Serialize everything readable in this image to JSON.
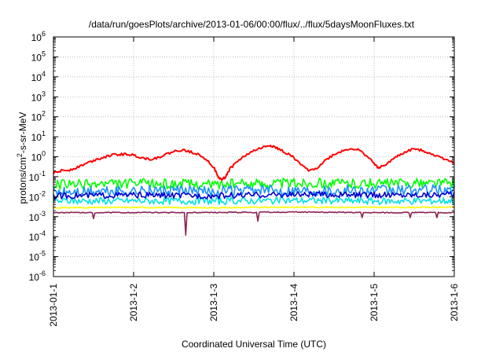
{
  "chart_data": {
    "type": "line",
    "title": "/data/run/goesPlots/archive/2013-01-06/00:00/flux/../flux/5daysMoonFluxes.txt",
    "xlabel": "Coordinated Universal Time (UTC)",
    "ylabel": "protons/cm²-s-sr-MeV",
    "ylabel_parts": {
      "before": "protons/cm",
      "sup": "2",
      "after": "-s-sr-MeV"
    },
    "yscale": "log",
    "ylim": [
      1e-06,
      1000000.0
    ],
    "xlim": [
      "2013-01-01",
      "2013-01-06"
    ],
    "grid": true,
    "x_ticks": [
      {
        "label": "2013-01-1",
        "day": 0
      },
      {
        "label": "2013-1-2",
        "day": 1
      },
      {
        "label": "2013-1-3",
        "day": 2
      },
      {
        "label": "2013-1-4",
        "day": 3
      },
      {
        "label": "2013-1-5",
        "day": 4
      },
      {
        "label": "2013-1-6",
        "day": 5
      }
    ],
    "y_ticks": [
      {
        "base": "10",
        "exp": "-6",
        "value": 1e-06
      },
      {
        "base": "10",
        "exp": "-5",
        "value": 1e-05
      },
      {
        "base": "10",
        "exp": "-4",
        "value": 0.0001
      },
      {
        "base": "10",
        "exp": "-3",
        "value": 0.001
      },
      {
        "base": "10",
        "exp": "-2",
        "value": 0.01
      },
      {
        "base": "10",
        "exp": "-1",
        "value": 0.1
      },
      {
        "base": "10",
        "exp": "0",
        "value": 1
      },
      {
        "base": "10",
        "exp": "1",
        "value": 10
      },
      {
        "base": "10",
        "exp": "2",
        "value": 100
      },
      {
        "base": "10",
        "exp": "3",
        "value": 1000
      },
      {
        "base": "10",
        "exp": "4",
        "value": 10000
      },
      {
        "base": "10",
        "exp": "5",
        "value": 100000
      },
      {
        "base": "10",
        "exp": "6",
        "value": 1000000
      }
    ],
    "series": [
      {
        "color": "#ffff00",
        "width": 1.6,
        "noise": 0.06,
        "anchors": [
          [
            0,
            0.0028
          ],
          [
            1,
            0.0029
          ],
          [
            2,
            0.0028
          ],
          [
            3,
            0.003
          ],
          [
            4,
            0.0029
          ],
          [
            5,
            0.003
          ]
        ]
      },
      {
        "color": "#00e0e0",
        "width": 1.6,
        "noise": 0.35,
        "anchors": [
          [
            0,
            0.006
          ],
          [
            1,
            0.0062
          ],
          [
            2,
            0.006
          ],
          [
            3,
            0.0065
          ],
          [
            4,
            0.006
          ],
          [
            5,
            0.0063
          ]
        ]
      },
      {
        "color": "#00ff00",
        "width": 1.6,
        "noise": 0.5,
        "anchors": [
          [
            0,
            0.04
          ],
          [
            1,
            0.045
          ],
          [
            2,
            0.042
          ],
          [
            3,
            0.05
          ],
          [
            4,
            0.045
          ],
          [
            5,
            0.05
          ]
        ]
      },
      {
        "color": "#1e90ff",
        "width": 1.6,
        "noise": 0.55,
        "anchors": [
          [
            0,
            0.016
          ],
          [
            1,
            0.02
          ],
          [
            2,
            0.018
          ],
          [
            3,
            0.022
          ],
          [
            4,
            0.02
          ],
          [
            5,
            0.022
          ]
        ]
      },
      {
        "color": "#0000cd",
        "width": 1.6,
        "noise": 0.3,
        "anchors": [
          [
            0,
            0.011
          ],
          [
            1,
            0.012
          ],
          [
            2,
            0.011
          ],
          [
            3,
            0.013
          ],
          [
            4,
            0.012
          ],
          [
            5,
            0.013
          ]
        ]
      },
      {
        "color": "#8b2252",
        "width": 1.6,
        "noise": 0.05,
        "anchors": [
          [
            0,
            0.0016
          ],
          [
            1,
            0.0016
          ],
          [
            2,
            0.0016
          ],
          [
            3,
            0.0017
          ],
          [
            4,
            0.0016
          ],
          [
            5,
            0.0016
          ]
        ],
        "spikes": [
          [
            0.5,
            0.0008
          ],
          [
            1.65,
            0.00012
          ],
          [
            2.55,
            0.0006
          ],
          [
            3.85,
            0.0009
          ],
          [
            4.45,
            0.0009
          ],
          [
            4.78,
            0.0009
          ]
        ]
      },
      {
        "color": "#ff0000",
        "width": 2,
        "points": [
          [
            0,
            0.15
          ],
          [
            0.1,
            0.2
          ],
          [
            0.2,
            0.22
          ],
          [
            0.3,
            0.3
          ],
          [
            0.4,
            0.45
          ],
          [
            0.5,
            0.65
          ],
          [
            0.6,
            0.9
          ],
          [
            0.7,
            1.15
          ],
          [
            0.8,
            1.3
          ],
          [
            0.9,
            1.35
          ],
          [
            1.0,
            1.2
          ],
          [
            1.1,
            0.9
          ],
          [
            1.2,
            0.75
          ],
          [
            1.3,
            0.9
          ],
          [
            1.4,
            1.3
          ],
          [
            1.5,
            1.8
          ],
          [
            1.6,
            2.2
          ],
          [
            1.7,
            1.8
          ],
          [
            1.8,
            1.4
          ],
          [
            1.9,
            0.8
          ],
          [
            2.0,
            0.3
          ],
          [
            2.05,
            0.1
          ],
          [
            2.1,
            0.07
          ],
          [
            2.15,
            0.1
          ],
          [
            2.2,
            0.25
          ],
          [
            2.3,
            0.6
          ],
          [
            2.4,
            1.2
          ],
          [
            2.5,
            2.0
          ],
          [
            2.6,
            2.8
          ],
          [
            2.7,
            3.8
          ],
          [
            2.75,
            3.2
          ],
          [
            2.8,
            2.5
          ],
          [
            2.9,
            1.6
          ],
          [
            3.0,
            0.9
          ],
          [
            3.1,
            0.35
          ],
          [
            3.2,
            0.2
          ],
          [
            3.3,
            0.3
          ],
          [
            3.4,
            0.7
          ],
          [
            3.5,
            1.3
          ],
          [
            3.6,
            1.9
          ],
          [
            3.7,
            2.6
          ],
          [
            3.8,
            2.2
          ],
          [
            3.9,
            1.2
          ],
          [
            4.0,
            0.45
          ],
          [
            4.05,
            0.3
          ],
          [
            4.1,
            0.32
          ],
          [
            4.2,
            0.6
          ],
          [
            4.3,
            1.1
          ],
          [
            4.4,
            1.8
          ],
          [
            4.5,
            2.5
          ],
          [
            4.6,
            2.1
          ],
          [
            4.7,
            1.5
          ],
          [
            4.8,
            1.0
          ],
          [
            4.9,
            0.75
          ],
          [
            5.0,
            0.5
          ]
        ]
      }
    ]
  }
}
